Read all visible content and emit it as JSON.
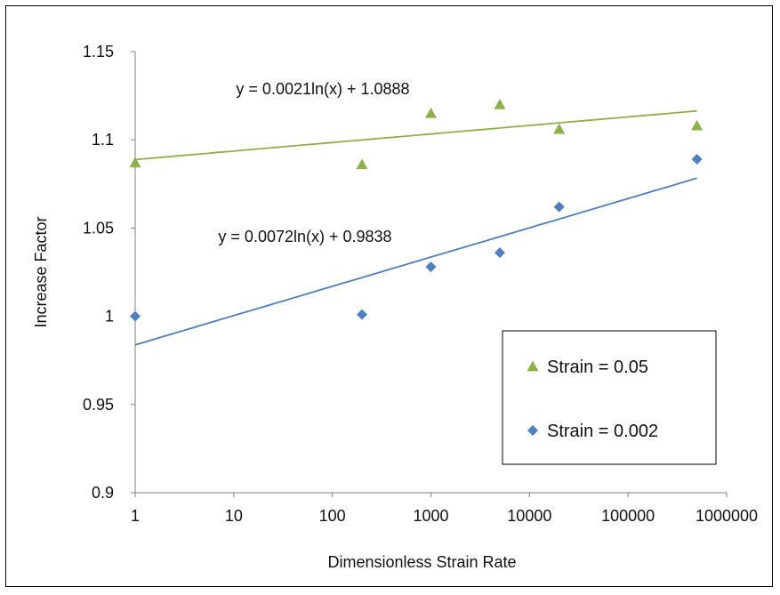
{
  "chart_data": {
    "type": "scatter",
    "xlabel": "Dimensionless Strain Rate",
    "ylabel": "Increase Factor",
    "x_scale": "log",
    "xlim": [
      1,
      1000000
    ],
    "ylim": [
      0.9,
      1.15
    ],
    "x_ticks": [
      1,
      10,
      100,
      1000,
      10000,
      100000,
      1000000
    ],
    "x_tick_labels": [
      "1",
      "10",
      "100",
      "1000",
      "10000",
      "100000",
      "1000000"
    ],
    "y_ticks": [
      0.9,
      0.95,
      1,
      1.05,
      1.1,
      1.15
    ],
    "y_tick_labels": [
      "0.9",
      "0.95",
      "1",
      "1.05",
      "1.1",
      "1.15"
    ],
    "grid": false,
    "legend_position": "bottom-right",
    "series": [
      {
        "name": "Strain = 0.05",
        "marker": "triangle",
        "color": "#8DB04A",
        "x": [
          1,
          200,
          1000,
          5000,
          20000,
          500000
        ],
        "y": [
          1.087,
          1.086,
          1.115,
          1.12,
          1.106,
          1.108
        ],
        "trendline": {
          "type": "log",
          "a": 0.0021,
          "b": 1.0888,
          "equation": "y = 0.0021ln(x) + 1.0888"
        }
      },
      {
        "name": "Strain = 0.002",
        "marker": "diamond",
        "color": "#4F7FC0",
        "x": [
          1,
          200,
          1000,
          5000,
          20000,
          500000
        ],
        "y": [
          1.0,
          1.001,
          1.028,
          1.036,
          1.062,
          1.089
        ],
        "trendline": {
          "type": "log",
          "a": 0.0072,
          "b": 0.9838,
          "equation": "y = 0.0072ln(x) + 0.9838"
        }
      }
    ]
  }
}
